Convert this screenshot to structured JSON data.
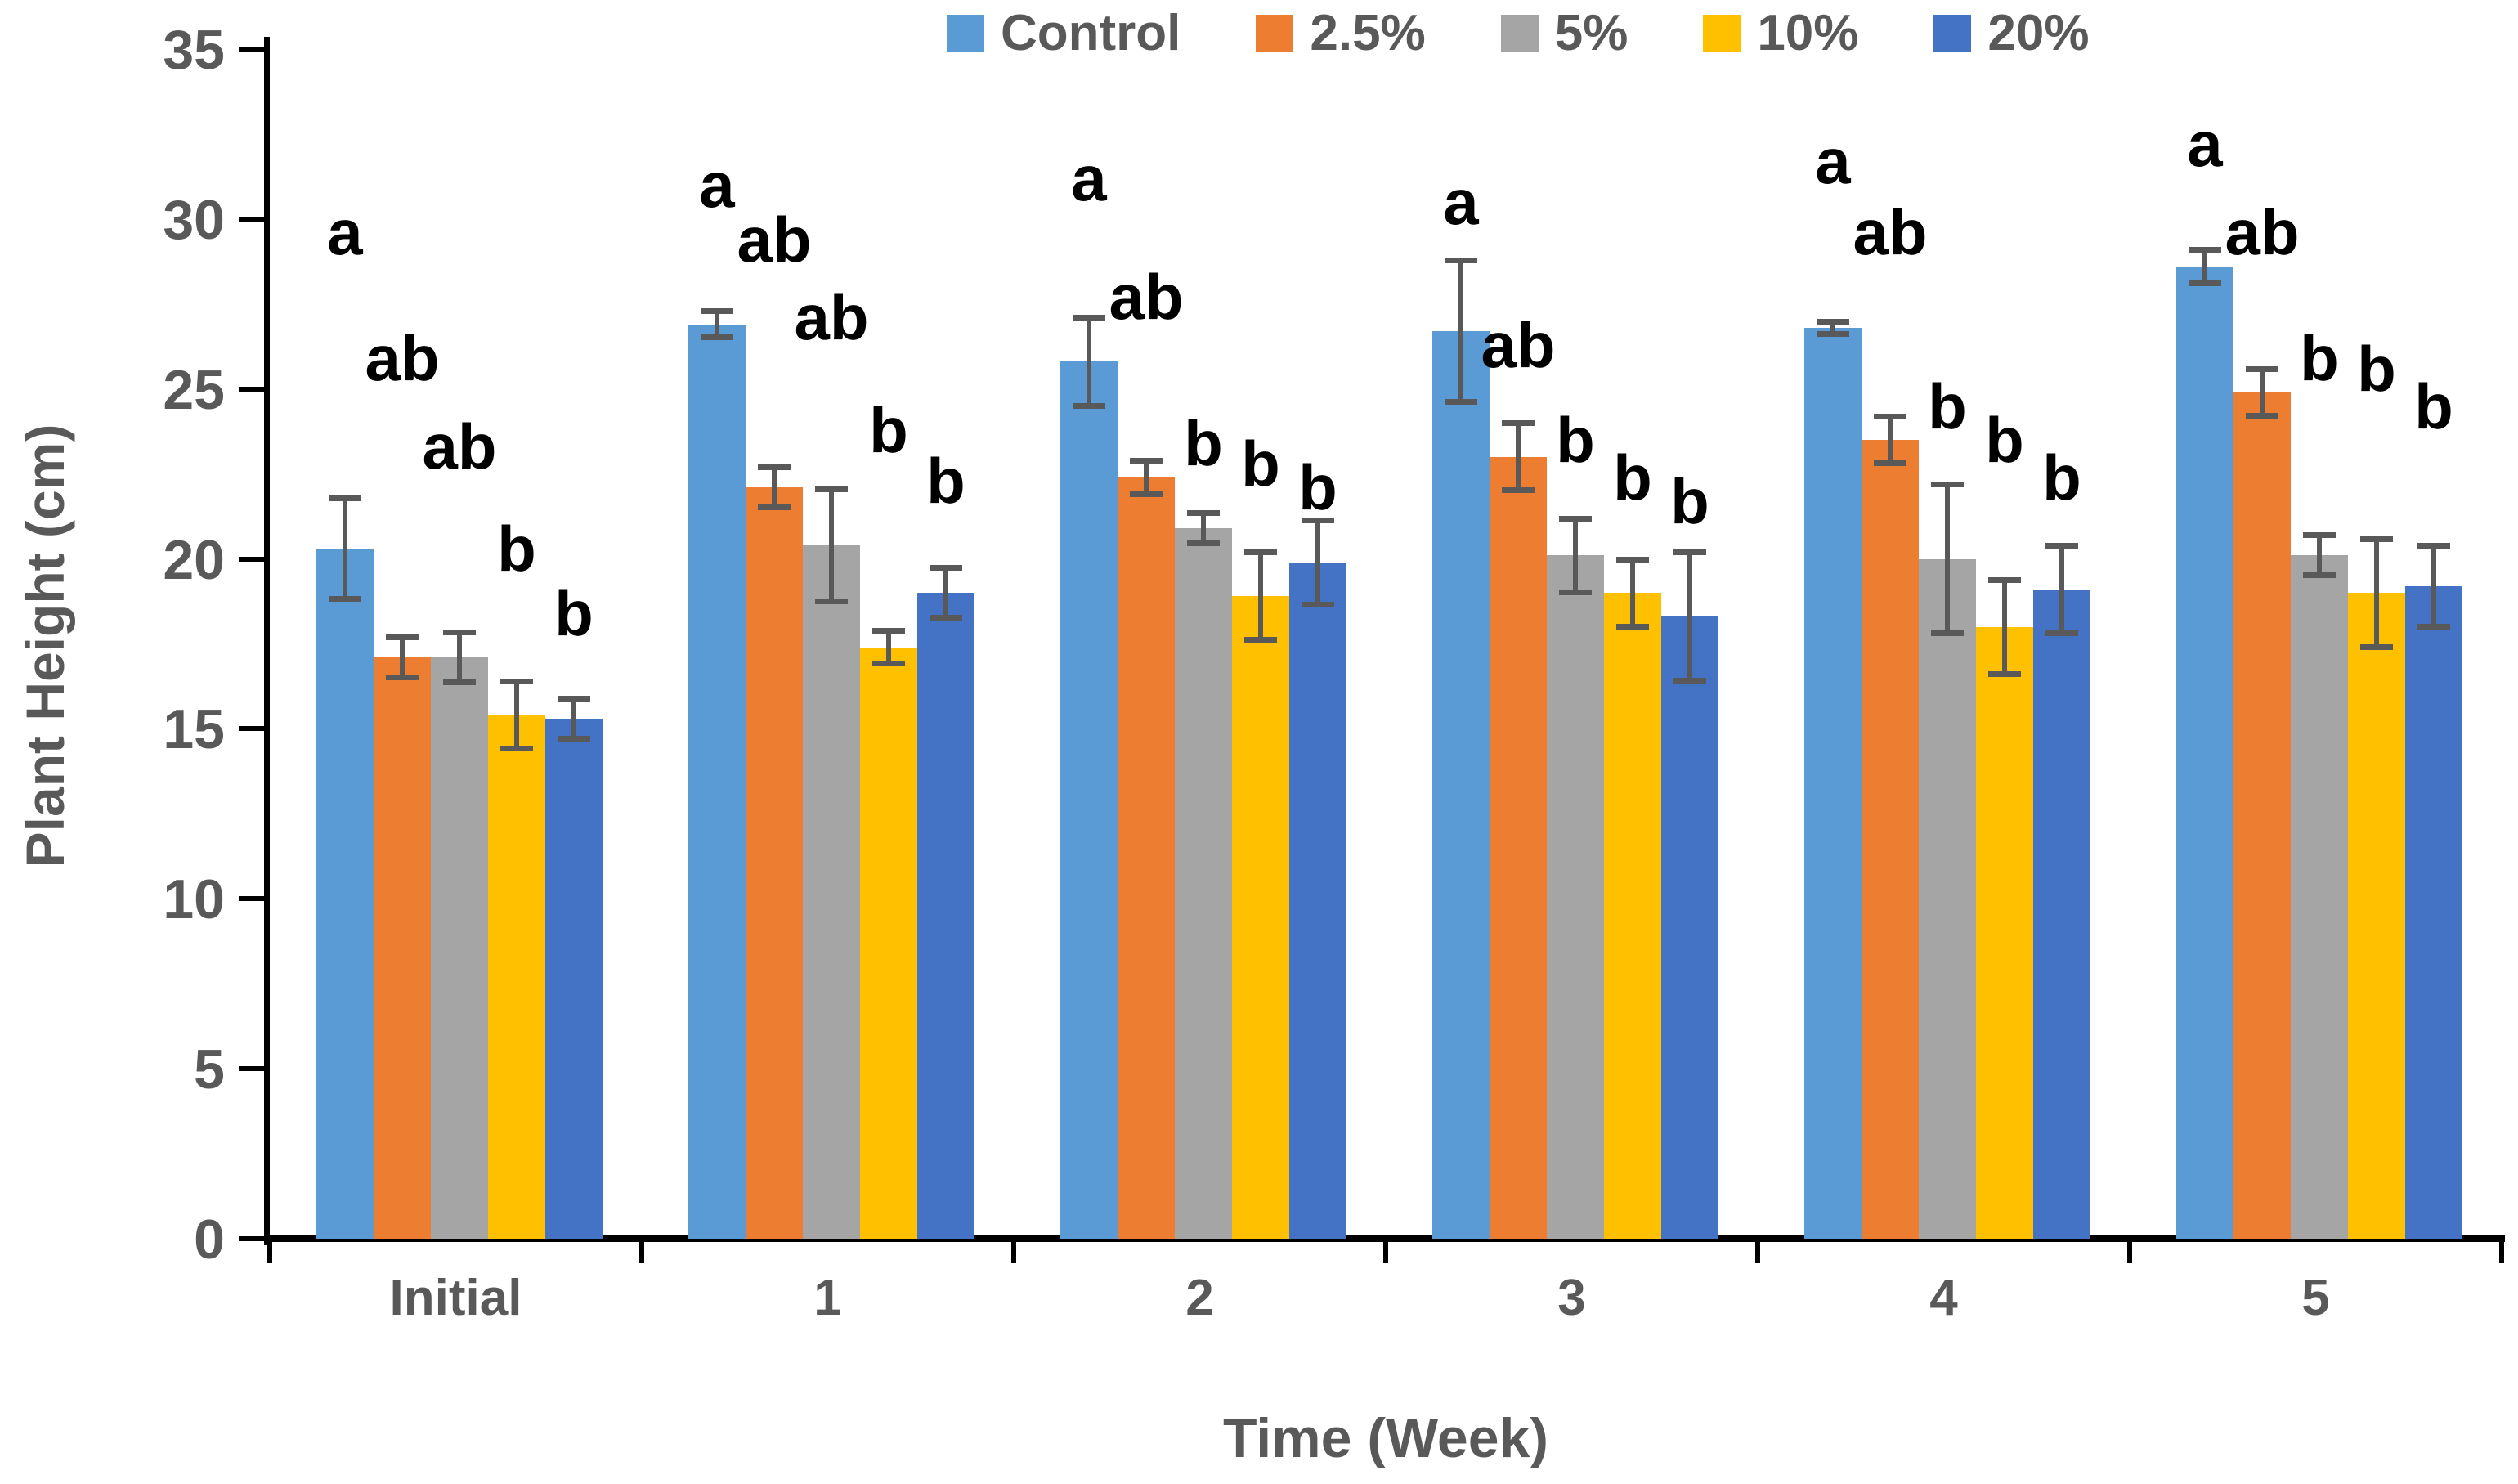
{
  "colors": {
    "axis": "#000000",
    "tick_text": "#595959",
    "error_bar": "#595959",
    "sig_letter": "#000000",
    "background": "#ffffff"
  },
  "chart_data": {
    "type": "bar",
    "title": "",
    "xlabel": "Time (Week)",
    "ylabel": "Plant Height (cm)",
    "ylim": [
      0,
      35
    ],
    "yticks": [
      0,
      5,
      10,
      15,
      20,
      25,
      30,
      35
    ],
    "grid": false,
    "legend_position": "top-center",
    "categories": [
      "Initial",
      "1",
      "2",
      "3",
      "4",
      "5"
    ],
    "series": [
      {
        "name": "Control",
        "color": "#5B9BD5",
        "values": [
          20.3,
          26.9,
          25.8,
          26.7,
          26.8,
          28.6
        ],
        "errors": [
          1.5,
          0.4,
          1.3,
          2.1,
          0.2,
          0.5
        ]
      },
      {
        "name": "2.5%",
        "color": "#ED7D31",
        "values": [
          17.1,
          22.1,
          22.4,
          23.0,
          23.5,
          24.9
        ],
        "errors": [
          0.6,
          0.6,
          0.5,
          1.0,
          0.7,
          0.7
        ]
      },
      {
        "name": "5%",
        "color": "#A5A5A5",
        "values": [
          17.1,
          20.4,
          20.9,
          20.1,
          20.0,
          20.1
        ],
        "errors": [
          0.75,
          1.65,
          0.45,
          1.1,
          2.2,
          0.6
        ]
      },
      {
        "name": "10%",
        "color": "#FFC000",
        "values": [
          15.4,
          17.4,
          18.9,
          19.0,
          18.0,
          19.0
        ],
        "errors": [
          1.0,
          0.5,
          1.3,
          1.0,
          1.4,
          1.6
        ]
      },
      {
        "name": "20%",
        "color": "#4472C4",
        "values": [
          15.3,
          19.0,
          19.9,
          18.3,
          19.1,
          19.2
        ],
        "errors": [
          0.6,
          0.75,
          1.25,
          1.9,
          1.3,
          1.2
        ]
      }
    ],
    "sig_letters": [
      [
        {
          "text": "a",
          "y": 29.6
        },
        {
          "text": "ab",
          "y": 25.9
        },
        {
          "text": "ab",
          "y": 23.3
        },
        {
          "text": "b",
          "y": 20.3
        },
        {
          "text": "b",
          "y": 18.4
        }
      ],
      [
        {
          "text": "a",
          "y": 31.0
        },
        {
          "text": "ab",
          "y": 29.4
        },
        {
          "text": "ab",
          "y": 27.1
        },
        {
          "text": "b",
          "y": 23.8
        },
        {
          "text": "b",
          "y": 22.3
        }
      ],
      [
        {
          "text": "a",
          "y": 31.2
        },
        {
          "text": "ab",
          "y": 27.7
        },
        {
          "text": "b",
          "y": 23.4
        },
        {
          "text": "b",
          "y": 22.8
        },
        {
          "text": "b",
          "y": 22.1
        }
      ],
      [
        {
          "text": "a",
          "y": 30.5
        },
        {
          "text": "ab",
          "y": 26.3
        },
        {
          "text": "b",
          "y": 23.5
        },
        {
          "text": "b",
          "y": 22.4
        },
        {
          "text": "b",
          "y": 21.7
        }
      ],
      [
        {
          "text": "a",
          "y": 31.7
        },
        {
          "text": "ab",
          "y": 29.6
        },
        {
          "text": "b",
          "y": 24.5
        },
        {
          "text": "b",
          "y": 23.5
        },
        {
          "text": "b",
          "y": 22.4
        }
      ],
      [
        {
          "text": "a",
          "y": 32.2
        },
        {
          "text": "ab",
          "y": 29.6
        },
        {
          "text": "b",
          "y": 25.9
        },
        {
          "text": "b",
          "y": 25.6
        },
        {
          "text": "b",
          "y": 24.5
        }
      ]
    ]
  }
}
